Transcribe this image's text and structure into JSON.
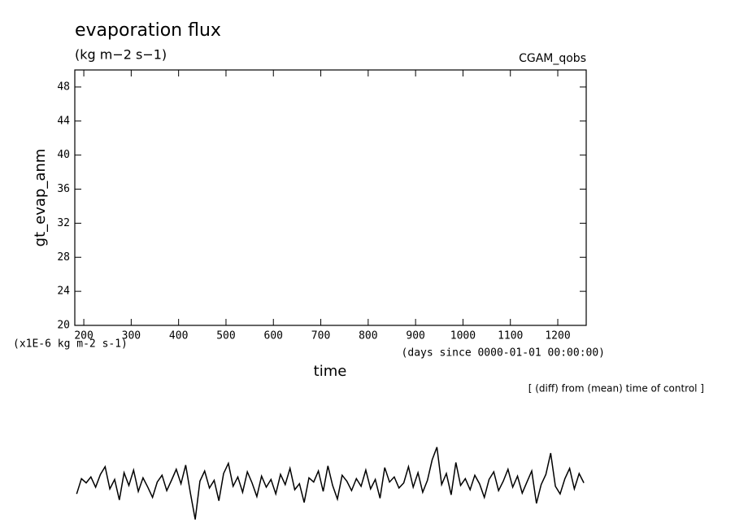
{
  "chart_data": {
    "type": "line",
    "title": "evaporation flux",
    "subtitle": "(kg m−2 s−1)",
    "dataset_label": "CGAM_qobs",
    "y_label": "gt_evap_anm",
    "x_label": "time",
    "y_units_note": "(x1E-6 kg m-2 s-1)",
    "x_units_note": "(days since 0000-01-01 00:00:00)",
    "annotation": "[ (diff) from (mean) time of control ]",
    "xlim": [
      181,
      1260
    ],
    "ylim": [
      20,
      50
    ],
    "xticks": [
      200,
      300,
      400,
      500,
      600,
      700,
      800,
      900,
      1000,
      1100,
      1200
    ],
    "yticks": [
      20,
      24,
      28,
      32,
      36,
      40,
      44,
      48
    ],
    "x": [
      185,
      195,
      205,
      215,
      225,
      235,
      245,
      255,
      265,
      275,
      285,
      295,
      305,
      315,
      325,
      335,
      345,
      355,
      365,
      375,
      385,
      395,
      405,
      415,
      425,
      435,
      445,
      455,
      465,
      475,
      485,
      495,
      505,
      515,
      525,
      535,
      545,
      555,
      565,
      575,
      585,
      595,
      605,
      615,
      625,
      635,
      645,
      655,
      665,
      675,
      685,
      695,
      705,
      715,
      725,
      735,
      745,
      755,
      765,
      775,
      785,
      795,
      805,
      815,
      825,
      835,
      845,
      855,
      865,
      875,
      885,
      895,
      905,
      915,
      925,
      935,
      945,
      955,
      965,
      975,
      985,
      995,
      1005,
      1015,
      1025,
      1035,
      1045,
      1055,
      1065,
      1075,
      1085,
      1095,
      1105,
      1115,
      1125,
      1135,
      1145,
      1155,
      1165,
      1175,
      1185,
      1195,
      1205,
      1215,
      1225,
      1235,
      1245,
      1255
    ],
    "series": [
      {
        "name": "gt_evap_anm",
        "color": "#000000",
        "values": [
          0.2,
          2.0,
          1.5,
          2.2,
          1.0,
          2.5,
          3.4,
          0.8,
          1.9,
          -0.5,
          2.7,
          1.2,
          3.0,
          0.5,
          2.1,
          1.0,
          -0.2,
          1.6,
          2.4,
          0.6,
          1.8,
          3.1,
          1.4,
          3.6,
          0.3,
          -2.8,
          1.7,
          2.9,
          0.9,
          1.8,
          -0.6,
          2.6,
          3.8,
          1.1,
          2.2,
          0.4,
          2.8,
          1.5,
          -0.1,
          2.3,
          1.0,
          1.9,
          0.2,
          2.5,
          1.3,
          3.2,
          0.7,
          1.4,
          -0.8,
          2.1,
          1.6,
          2.9,
          0.5,
          3.5,
          1.2,
          -0.4,
          2.4,
          1.7,
          0.6,
          2.0,
          1.1,
          3.0,
          0.8,
          1.9,
          -0.3,
          3.3,
          1.6,
          2.2,
          0.9,
          1.5,
          3.4,
          1.0,
          2.7,
          0.4,
          1.8,
          4.2,
          5.7,
          1.3,
          2.6,
          0.1,
          3.9,
          1.2,
          2.0,
          0.7,
          2.4,
          1.4,
          -0.2,
          1.9,
          2.8,
          0.6,
          1.7,
          3.1,
          1.0,
          2.3,
          0.3,
          1.6,
          2.9,
          -0.9,
          1.3,
          2.5,
          5.0,
          1.1,
          0.2,
          2.0,
          3.2,
          0.8,
          2.6,
          1.5
        ]
      }
    ]
  }
}
